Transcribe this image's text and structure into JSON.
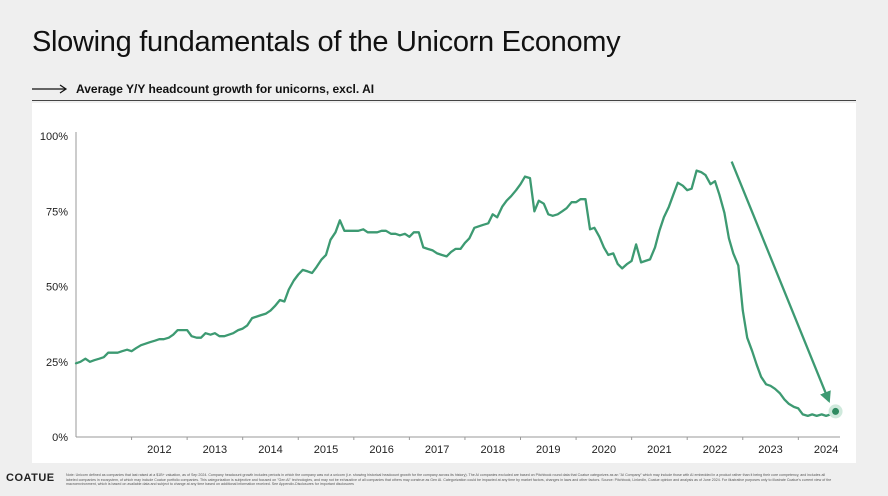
{
  "header": {
    "title": "Slowing fundamentals of the Unicorn Economy",
    "subtitle": "Average Y/Y headcount growth for unicorns, excl. AI"
  },
  "footer": {
    "brand": "COATUE",
    "note": "Note: Unicorn defined as companies that last raised at a $1B+ valuation, as of Sep 2024. Company headcount growth includes periods in which the company was not a unicorn (i.e. showing historical headcount growth for the company across its history). The AI companies excluded are based on Pitchbook round data that Coatue categorizes as an \"AI Company\" which may include those with AI embedded in a product rather than it being their core competency, and includes all labeled companies in ecosystem, of which may include Coatue portfolio companies. This categorization is subjective and focused on \"Gen AI\" technologies, and may not be exhaustive of all companies that others may construe as Gen AI. Categorization could be impacted at any time by market factors, changes in laws and other factors. Source: Pitchbook, LinkedIn, Coatue opinion and analysis as of June 2024. For illustrative purposes only to illustrate Coatue's current view of the macroenvironment, which is based on available data and subject to change at any time based on additional information received. See Appendix-Disclosures for important disclosures"
  },
  "colors": {
    "line": "#3d9a72",
    "point": "#2f8a60",
    "halo": "#cfe9dc",
    "axis": "#999999",
    "text": "#222222"
  },
  "chart_data": {
    "type": "line",
    "xlabel": "",
    "ylabel": "",
    "ylim": [
      0,
      100
    ],
    "xlim": [
      2011.0,
      2024.75
    ],
    "yticks": [
      0,
      25,
      50,
      75,
      100
    ],
    "yticklabels": [
      "0%",
      "25%",
      "50%",
      "75%",
      "100%"
    ],
    "xticks": [
      2012,
      2013,
      2014,
      2015,
      2016,
      2017,
      2018,
      2019,
      2020,
      2021,
      2022,
      2023,
      2024
    ],
    "grid": false,
    "legend": "none",
    "series": [
      {
        "name": "",
        "x": [
          2011.0,
          2011.08,
          2011.17,
          2011.25,
          2011.33,
          2011.42,
          2011.5,
          2011.58,
          2011.67,
          2011.75,
          2011.83,
          2011.92,
          2012.0,
          2012.08,
          2012.17,
          2012.25,
          2012.33,
          2012.42,
          2012.5,
          2012.58,
          2012.67,
          2012.75,
          2012.83,
          2012.92,
          2013.0,
          2013.08,
          2013.17,
          2013.25,
          2013.33,
          2013.42,
          2013.5,
          2013.58,
          2013.67,
          2013.75,
          2013.83,
          2013.92,
          2014.0,
          2014.08,
          2014.17,
          2014.25,
          2014.33,
          2014.42,
          2014.5,
          2014.58,
          2014.67,
          2014.75,
          2014.83,
          2014.92,
          2015.0,
          2015.08,
          2015.17,
          2015.25,
          2015.33,
          2015.42,
          2015.5,
          2015.58,
          2015.67,
          2015.75,
          2015.83,
          2015.92,
          2016.0,
          2016.08,
          2016.17,
          2016.25,
          2016.33,
          2016.42,
          2016.5,
          2016.58,
          2016.67,
          2016.75,
          2016.83,
          2016.92,
          2017.0,
          2017.08,
          2017.17,
          2017.25,
          2017.33,
          2017.42,
          2017.5,
          2017.58,
          2017.67,
          2017.75,
          2017.83,
          2017.92,
          2018.0,
          2018.08,
          2018.17,
          2018.25,
          2018.33,
          2018.42,
          2018.5,
          2018.58,
          2018.67,
          2018.75,
          2018.83,
          2018.92,
          2019.0,
          2019.08,
          2019.17,
          2019.25,
          2019.33,
          2019.42,
          2019.5,
          2019.58,
          2019.67,
          2019.75,
          2019.83,
          2019.92,
          2020.0,
          2020.08,
          2020.17,
          2020.25,
          2020.33,
          2020.42,
          2020.5,
          2020.58,
          2020.67,
          2020.75,
          2020.83,
          2020.92,
          2021.0,
          2021.08,
          2021.17,
          2021.25,
          2021.33,
          2021.42,
          2021.5,
          2021.58,
          2021.67,
          2021.75,
          2021.83,
          2021.92,
          2022.0,
          2022.08,
          2022.17,
          2022.25,
          2022.33,
          2022.42,
          2022.5,
          2022.58,
          2022.67,
          2022.75,
          2022.83,
          2022.92,
          2023.0,
          2023.08,
          2023.17,
          2023.25,
          2023.33,
          2023.42,
          2023.5,
          2023.58,
          2023.67,
          2023.75,
          2023.83,
          2023.92,
          2024.0,
          2024.08,
          2024.17,
          2024.25,
          2024.33,
          2024.42,
          2024.5,
          2024.58,
          2024.67
        ],
        "values": [
          24.5,
          25.0,
          26.0,
          25.0,
          25.5,
          26.0,
          26.5,
          28.0,
          28.0,
          28.0,
          28.5,
          29.0,
          28.5,
          29.5,
          30.5,
          31.0,
          31.5,
          32.0,
          32.5,
          32.5,
          33.0,
          34.0,
          35.5,
          35.5,
          35.5,
          33.5,
          33.0,
          33.0,
          34.5,
          34.0,
          34.5,
          33.5,
          33.5,
          34.0,
          34.5,
          35.5,
          36.0,
          37.0,
          39.5,
          40.0,
          40.5,
          41.0,
          42.0,
          43.5,
          45.5,
          45.0,
          49.0,
          52.0,
          54.0,
          55.5,
          55.0,
          54.5,
          56.5,
          59.0,
          60.5,
          65.5,
          68.0,
          72.0,
          68.5,
          68.5,
          68.5,
          68.5,
          69.0,
          68.0,
          68.0,
          68.0,
          68.5,
          68.5,
          67.5,
          67.5,
          67.0,
          67.5,
          66.5,
          68.0,
          68.0,
          63.0,
          62.5,
          62.0,
          61.0,
          60.5,
          60.0,
          61.5,
          62.5,
          62.5,
          64.5,
          66.0,
          69.5,
          70.0,
          70.5,
          71.0,
          74.0,
          73.0,
          76.5,
          78.5,
          80.0,
          82.0,
          84.0,
          86.5,
          86.0,
          75.0,
          78.5,
          77.5,
          74.0,
          73.5,
          74.0,
          75.0,
          76.0,
          78.0,
          78.0,
          79.0,
          79.0,
          69.0,
          69.5,
          66.5,
          63.0,
          60.5,
          61.0,
          57.5,
          56.0,
          57.5,
          58.5,
          64.0,
          58.0,
          58.5,
          59.0,
          63.0,
          68.5,
          73.0,
          76.5,
          80.5,
          84.5,
          83.5,
          82.0,
          82.5,
          88.5,
          88.0,
          87.0,
          84.0,
          85.0,
          80.5,
          74.5,
          66.0,
          61.0,
          57.0,
          42.0,
          33.0,
          28.5,
          24.0,
          20.0,
          17.5,
          17.0,
          16.0,
          14.5,
          12.5,
          11.0,
          10.0,
          9.5,
          7.5,
          7.0,
          7.5,
          7.0,
          7.5,
          7.0,
          7.5,
          8.5
        ]
      }
    ],
    "annotations": [
      {
        "type": "arrow",
        "from": [
          2022.8,
          91.5
        ],
        "to": [
          2024.55,
          12.0
        ]
      },
      {
        "type": "highlight-point",
        "at": [
          2024.67,
          8.5
        ]
      }
    ]
  }
}
